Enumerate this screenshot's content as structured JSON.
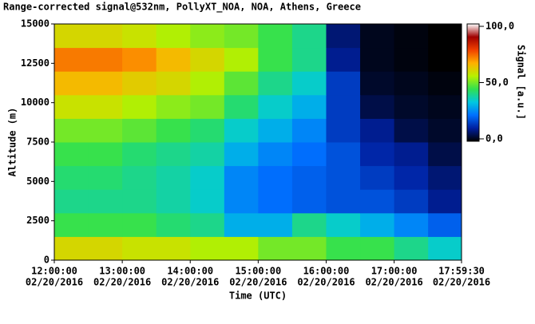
{
  "chart_data": {
    "type": "heatmap",
    "title": "Range-corrected signal@532nm, PollyXT_NOA, NOA, Athens, Greece",
    "x_label": "Time (UTC)",
    "y_label": "Altitude (m)",
    "colorbar_label": "Signal [a.u.]",
    "xlim": [
      12,
      17.9917
    ],
    "ylim": [
      0,
      15000
    ],
    "xticks": [
      {
        "value": 12,
        "label": "12:00:00",
        "date": "02/20/2016"
      },
      {
        "value": 13,
        "label": "13:00:00",
        "date": "02/20/2016"
      },
      {
        "value": 14,
        "label": "14:00:00",
        "date": "02/20/2016"
      },
      {
        "value": 15,
        "label": "15:00:00",
        "date": "02/20/2016"
      },
      {
        "value": 16,
        "label": "16:00:00",
        "date": "02/20/2016"
      },
      {
        "value": 17,
        "label": "17:00:00",
        "date": "02/20/2016"
      },
      {
        "value": 17.9917,
        "label": "17:59:30",
        "date": "02/20/2016"
      }
    ],
    "yticks": [
      0,
      2500,
      5000,
      7500,
      10000,
      12500,
      15000
    ],
    "clim": [
      0,
      100
    ],
    "cticks": [
      {
        "value": 0,
        "label": "0,0"
      },
      {
        "value": 50,
        "label": "50,0"
      },
      {
        "value": 100,
        "label": "100,0"
      }
    ],
    "colormap": [
      "#000000",
      "#0020a0",
      "#0070ff",
      "#00c8e0",
      "#30e050",
      "#b8f000",
      "#ffb000",
      "#f04000",
      "#a00000",
      "#ffffff"
    ],
    "x_edges": [
      12,
      12.5,
      13,
      13.5,
      14,
      14.5,
      15,
      15.5,
      16,
      16.5,
      17,
      17.5,
      17.9917
    ],
    "y_edges": [
      0,
      1500,
      3000,
      4500,
      6000,
      7500,
      9000,
      10500,
      12000,
      13500,
      15000
    ],
    "z": [
      [
        60,
        60,
        58,
        58,
        55,
        55,
        50,
        50,
        45,
        45,
        40,
        35
      ],
      [
        45,
        45,
        45,
        42,
        40,
        30,
        30,
        40,
        35,
        30,
        25,
        20
      ],
      [
        40,
        40,
        40,
        38,
        35,
        25,
        22,
        20,
        18,
        18,
        15,
        10
      ],
      [
        42,
        42,
        40,
        38,
        35,
        25,
        22,
        20,
        18,
        15,
        12,
        8
      ],
      [
        45,
        45,
        42,
        40,
        38,
        30,
        25,
        22,
        18,
        12,
        10,
        5
      ],
      [
        50,
        50,
        48,
        45,
        42,
        35,
        30,
        25,
        15,
        10,
        5,
        3
      ],
      [
        58,
        58,
        55,
        52,
        50,
        42,
        35,
        30,
        15,
        5,
        3,
        2
      ],
      [
        65,
        65,
        62,
        60,
        55,
        48,
        40,
        35,
        15,
        3,
        2,
        1
      ],
      [
        72,
        72,
        70,
        65,
        60,
        55,
        45,
        40,
        10,
        2,
        1,
        0
      ],
      [
        60,
        60,
        58,
        55,
        52,
        50,
        45,
        40,
        8,
        2,
        1,
        0
      ]
    ]
  }
}
